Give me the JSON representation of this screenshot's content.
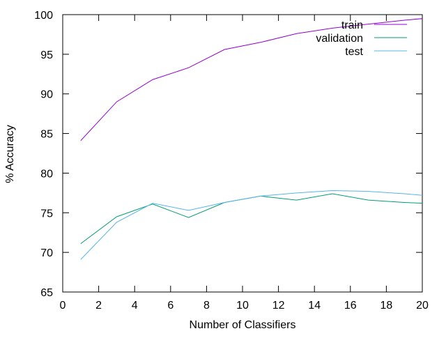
{
  "chart_data": {
    "type": "line",
    "title": "",
    "xlabel": "Number of Classifiers",
    "ylabel": "% Accuracy",
    "xlim": [
      0,
      20
    ],
    "ylim": [
      65,
      100
    ],
    "xticks": [
      0,
      2,
      4,
      6,
      8,
      10,
      12,
      14,
      16,
      18,
      20
    ],
    "yticks": [
      65,
      70,
      75,
      80,
      85,
      90,
      95,
      100
    ],
    "grid": false,
    "legend_position": "top-right",
    "x": [
      1,
      3,
      5,
      7,
      9,
      11,
      13,
      15,
      17,
      19,
      21
    ],
    "series": [
      {
        "name": "train",
        "color": "#9400d3",
        "values": [
          84.1,
          89.0,
          91.8,
          93.3,
          95.6,
          96.5,
          97.6,
          98.3,
          98.8,
          99.3,
          99.7
        ]
      },
      {
        "name": "validation",
        "color": "#009e73",
        "values": [
          71.1,
          74.5,
          76.1,
          74.4,
          76.3,
          77.1,
          76.6,
          77.4,
          76.6,
          76.3,
          76.1
        ]
      },
      {
        "name": "test",
        "color": "#56b4e9",
        "values": [
          69.1,
          73.8,
          76.2,
          75.3,
          76.3,
          77.1,
          77.5,
          77.8,
          77.7,
          77.4,
          77.0
        ]
      }
    ]
  }
}
